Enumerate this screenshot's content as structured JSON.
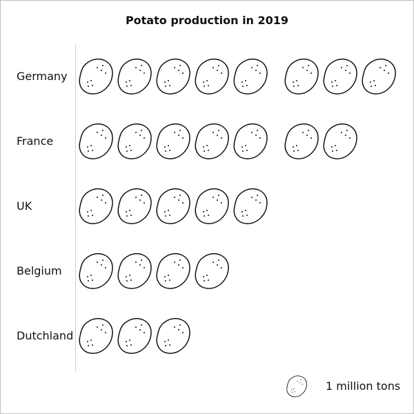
{
  "chart_data": {
    "type": "pictograph",
    "title": "Potato production in 2019",
    "categories": [
      "Germany",
      "France",
      "UK",
      "Belgium",
      "Dutchland"
    ],
    "values": [
      8,
      7,
      5,
      4,
      3
    ],
    "unit_per_icon": 1,
    "legend": {
      "icon": "potato-icon",
      "label": "1 million tons"
    }
  },
  "colors": {
    "stroke": "#111111",
    "axis": "#cfcfcf",
    "background": "#ffffff"
  }
}
